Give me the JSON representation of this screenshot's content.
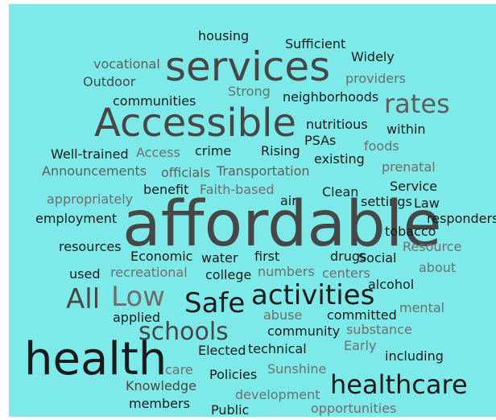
{
  "palette": {
    "background": "#7de9e9",
    "dark": "#1b1b1b",
    "mid": "#474747",
    "gray": "#5e5e5e",
    "light": "#6e6e6e"
  },
  "words": [
    {
      "text": "housing"
    },
    {
      "text": "Sufficient"
    },
    {
      "text": "Widely"
    },
    {
      "text": "vocational"
    },
    {
      "text": "services"
    },
    {
      "text": "Outdoor"
    },
    {
      "text": "providers"
    },
    {
      "text": "Strong"
    },
    {
      "text": "communities"
    },
    {
      "text": "neighborhoods"
    },
    {
      "text": "rates"
    },
    {
      "text": "Accessible"
    },
    {
      "text": "nutritious"
    },
    {
      "text": "within"
    },
    {
      "text": "PSAs"
    },
    {
      "text": "foods"
    },
    {
      "text": "Well-trained"
    },
    {
      "text": "Access"
    },
    {
      "text": "crime"
    },
    {
      "text": "Rising"
    },
    {
      "text": "existing"
    },
    {
      "text": "Announcements"
    },
    {
      "text": "officials"
    },
    {
      "text": "Transportation"
    },
    {
      "text": "prenatal"
    },
    {
      "text": "appropriately"
    },
    {
      "text": "benefit"
    },
    {
      "text": "Faith-based"
    },
    {
      "text": "Clean"
    },
    {
      "text": "Service"
    },
    {
      "text": "air"
    },
    {
      "text": "settings"
    },
    {
      "text": "Law"
    },
    {
      "text": "employment"
    },
    {
      "text": "affordable"
    },
    {
      "text": "responders"
    },
    {
      "text": "tobacco"
    },
    {
      "text": "resources"
    },
    {
      "text": "Resource"
    },
    {
      "text": "Economic"
    },
    {
      "text": "water"
    },
    {
      "text": "first"
    },
    {
      "text": "drugs"
    },
    {
      "text": "Social"
    },
    {
      "text": "used"
    },
    {
      "text": "recreational"
    },
    {
      "text": "college"
    },
    {
      "text": "numbers"
    },
    {
      "text": "centers"
    },
    {
      "text": "about"
    },
    {
      "text": "All"
    },
    {
      "text": "Low"
    },
    {
      "text": "alcohol"
    },
    {
      "text": "Safe"
    },
    {
      "text": "activities"
    },
    {
      "text": "applied"
    },
    {
      "text": "abuse"
    },
    {
      "text": "committed"
    },
    {
      "text": "mental"
    },
    {
      "text": "schools"
    },
    {
      "text": "community"
    },
    {
      "text": "substance"
    },
    {
      "text": "health"
    },
    {
      "text": "Elected"
    },
    {
      "text": "technical"
    },
    {
      "text": "Early"
    },
    {
      "text": "including"
    },
    {
      "text": "care"
    },
    {
      "text": "Sunshine"
    },
    {
      "text": "Knowledge"
    },
    {
      "text": "Policies"
    },
    {
      "text": "healthcare"
    },
    {
      "text": "development"
    },
    {
      "text": "members"
    },
    {
      "text": "Public"
    },
    {
      "text": "opportunities"
    }
  ]
}
